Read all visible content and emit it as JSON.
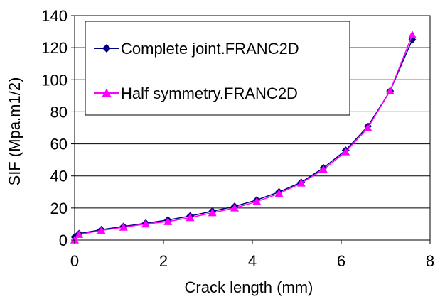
{
  "chart_data": {
    "type": "line",
    "title": "",
    "xlabel": "Crack length (mm)",
    "ylabel": "SIF (Mpa.m1/2)",
    "xlim": [
      0,
      8
    ],
    "ylim": [
      0,
      140
    ],
    "xticks": [
      0,
      2,
      4,
      6,
      8
    ],
    "yticks": [
      0,
      20,
      40,
      60,
      80,
      100,
      120,
      140
    ],
    "grid": "horizontal",
    "legend_position": "top-left",
    "series": [
      {
        "name": "Complete joint.FRANC2D",
        "color": "#000080",
        "marker": "diamond",
        "x": [
          0,
          0.1,
          0.6,
          1.1,
          1.6,
          2.1,
          2.6,
          3.1,
          3.6,
          4.1,
          4.6,
          5.1,
          5.6,
          6.1,
          6.6,
          7.1,
          7.6
        ],
        "y": [
          2,
          4,
          6.5,
          8.5,
          10.5,
          12.5,
          15,
          18,
          21,
          25,
          30,
          36,
          45,
          56,
          71,
          93,
          125
        ]
      },
      {
        "name": "Half symmetry.FRANC2D",
        "color": "#ff00ff",
        "marker": "triangle",
        "x": [
          0,
          0.1,
          0.6,
          1.1,
          1.6,
          2.1,
          2.6,
          3.1,
          3.6,
          4.1,
          4.6,
          5.1,
          5.6,
          6.1,
          6.6,
          7.1,
          7.6
        ],
        "y": [
          0,
          3.5,
          6,
          8,
          10,
          11.5,
          14,
          17,
          20,
          24,
          29,
          35.5,
          44,
          55,
          70,
          93,
          128
        ]
      }
    ]
  }
}
